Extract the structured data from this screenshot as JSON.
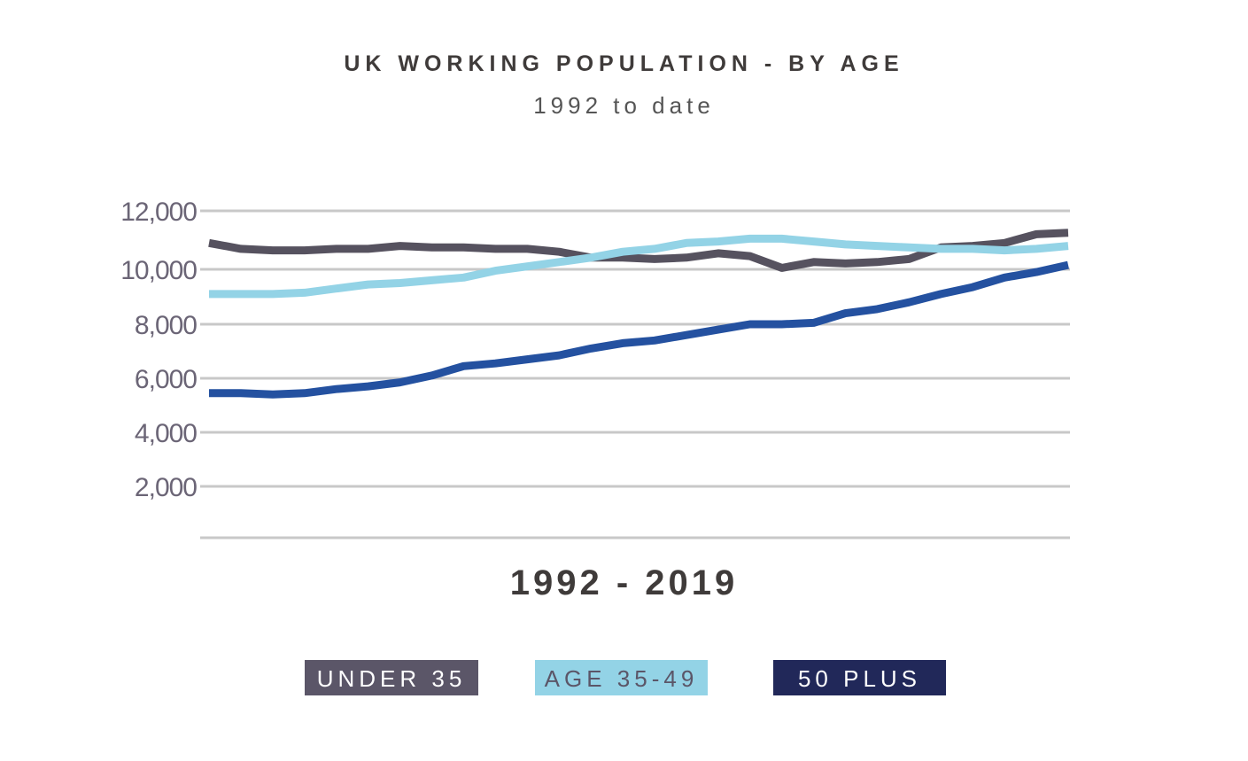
{
  "chart_data": {
    "type": "line",
    "title": "UK WORKING POPULATION - BY AGE",
    "subtitle": "1992 to date",
    "xlabel": "1992 - 2019",
    "ylabel": "",
    "ylim": [
      0,
      12000
    ],
    "yticks": [
      2000,
      4000,
      6000,
      8000,
      10000,
      12000
    ],
    "ytick_labels": [
      "2,000",
      "4,000",
      "6,000",
      "8,000",
      "10,000",
      "12,000"
    ],
    "grid": true,
    "legend_position": "bottom",
    "x": [
      1992,
      1993,
      1994,
      1995,
      1996,
      1997,
      1998,
      1999,
      2000,
      2001,
      2002,
      2003,
      2004,
      2005,
      2006,
      2007,
      2008,
      2009,
      2010,
      2011,
      2012,
      2013,
      2014,
      2015,
      2016,
      2017,
      2018,
      2019
    ],
    "series": [
      {
        "name": "UNDER 35",
        "color": "#5b5668",
        "line_color": "#56525f",
        "text_color": "#ffffff",
        "values": [
          10900,
          10700,
          10650,
          10650,
          10700,
          10700,
          10800,
          10750,
          10750,
          10700,
          10700,
          10600,
          10400,
          10400,
          10350,
          10400,
          10550,
          10450,
          10050,
          10250,
          10200,
          10250,
          10350,
          10750,
          10800,
          10900,
          11200,
          11250
        ]
      },
      {
        "name": "AGE 35-49",
        "color": "#93d3e6",
        "line_color": "#93d3e6",
        "text_color": "#5b5668",
        "values": [
          9100,
          9100,
          9100,
          9150,
          9300,
          9450,
          9500,
          9600,
          9700,
          9950,
          10100,
          10250,
          10400,
          10600,
          10700,
          10900,
          10950,
          11050,
          11050,
          10950,
          10850,
          10800,
          10750,
          10700,
          10700,
          10650,
          10700,
          10800
        ]
      },
      {
        "name": "50 PLUS",
        "color": "#212859",
        "line_color": "#2451a0",
        "text_color": "#ffffff",
        "values": [
          5450,
          5450,
          5400,
          5450,
          5600,
          5700,
          5850,
          6100,
          6450,
          6550,
          6700,
          6850,
          7100,
          7300,
          7400,
          7600,
          7800,
          8000,
          8000,
          8050,
          8400,
          8550,
          8800,
          9100,
          9350,
          9700,
          9900,
          10150
        ]
      }
    ]
  }
}
